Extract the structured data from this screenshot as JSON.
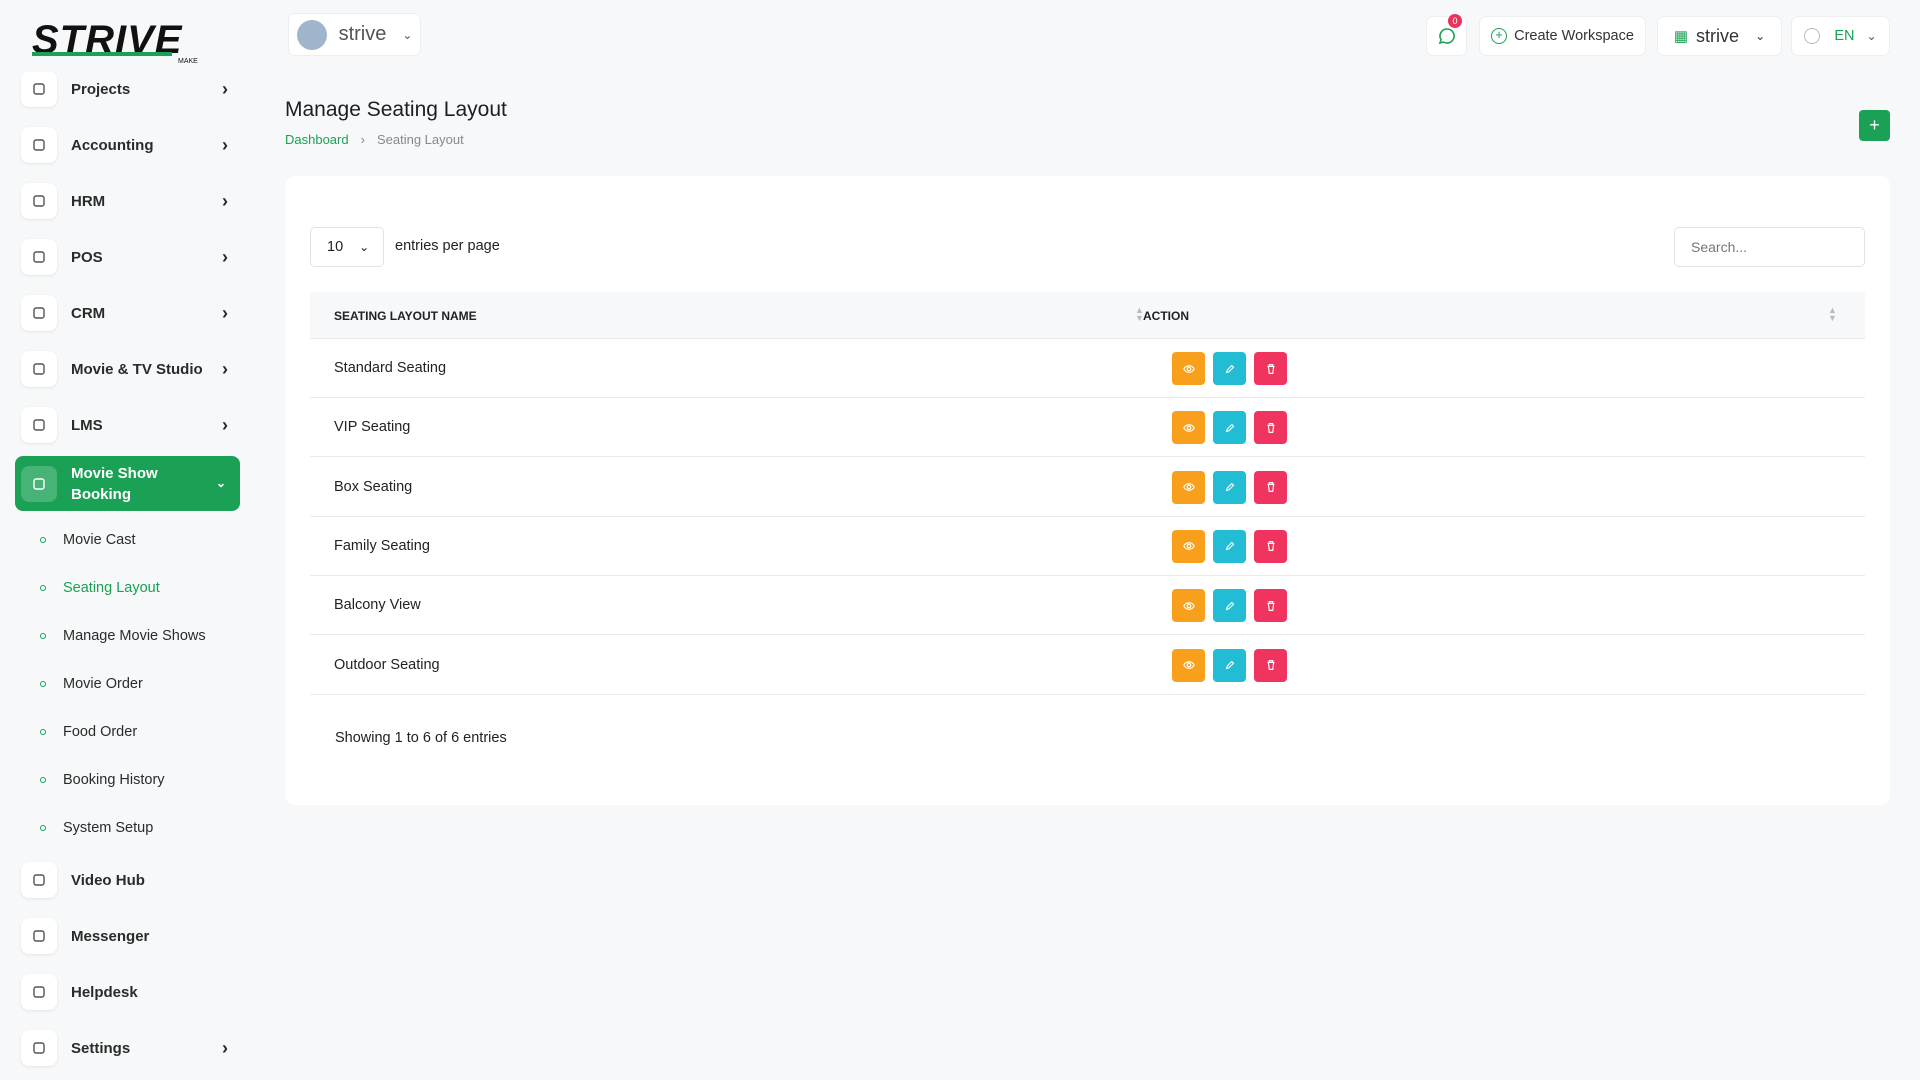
{
  "logo": {
    "text": "STRIVE",
    "sub": "MAKE"
  },
  "header": {
    "workspace": "strive",
    "notifications": "0",
    "create_workspace": "Create Workspace",
    "workspace_menu": "strive",
    "language": "EN"
  },
  "sidebar": {
    "items": [
      {
        "label": "Projects",
        "submenu": true
      },
      {
        "label": "Accounting",
        "submenu": true
      },
      {
        "label": "HRM",
        "submenu": true
      },
      {
        "label": "POS",
        "submenu": true
      },
      {
        "label": "CRM",
        "submenu": true
      },
      {
        "label": "Movie & TV Studio",
        "submenu": true
      },
      {
        "label": "LMS",
        "submenu": true
      },
      {
        "label": "Movie Show Booking",
        "submenu": true,
        "active": true,
        "children": [
          "Movie Cast",
          "Seating Layout",
          "Manage Movie Shows",
          "Movie Order",
          "Food Order",
          "Booking History",
          "System Setup"
        ],
        "active_child": 1
      },
      {
        "label": "Video Hub",
        "submenu": false
      },
      {
        "label": "Messenger",
        "submenu": false
      },
      {
        "label": "Helpdesk",
        "submenu": false
      },
      {
        "label": "Settings",
        "submenu": true
      }
    ]
  },
  "page": {
    "title": "Manage Seating Layout",
    "breadcrumb": [
      "Dashboard",
      "Seating Layout"
    ]
  },
  "table": {
    "entries_per_page": "10",
    "entries_label": "entries per page",
    "search_placeholder": "Search...",
    "columns": [
      "SEATING LAYOUT NAME",
      "ACTION"
    ],
    "rows": [
      "Standard Seating",
      "VIP Seating",
      "Box Seating",
      "Family Seating",
      "Balcony View",
      "Outdoor Seating"
    ],
    "footer": "Showing 1 to 6 of 6 entries"
  }
}
